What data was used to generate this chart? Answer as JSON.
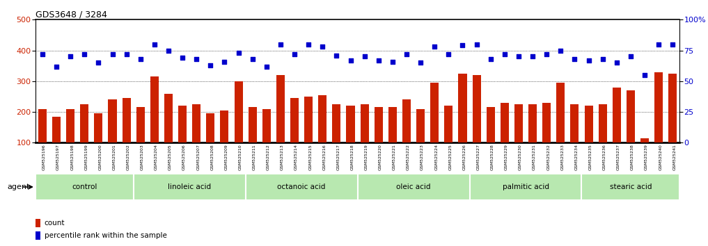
{
  "title": "GDS3648 / 3284",
  "samples": [
    "GSM525196",
    "GSM525197",
    "GSM525198",
    "GSM525199",
    "GSM525200",
    "GSM525201",
    "GSM525202",
    "GSM525203",
    "GSM525204",
    "GSM525205",
    "GSM525206",
    "GSM525207",
    "GSM525208",
    "GSM525209",
    "GSM525210",
    "GSM525211",
    "GSM525212",
    "GSM525213",
    "GSM525214",
    "GSM525215",
    "GSM525216",
    "GSM525217",
    "GSM525218",
    "GSM525219",
    "GSM525220",
    "GSM525221",
    "GSM525222",
    "GSM525223",
    "GSM525224",
    "GSM525225",
    "GSM525226",
    "GSM525227",
    "GSM525228",
    "GSM525229",
    "GSM525230",
    "GSM525231",
    "GSM525232",
    "GSM525233",
    "GSM525234",
    "GSM525235",
    "GSM525236",
    "GSM525237",
    "GSM525238",
    "GSM525239",
    "GSM525240",
    "GSM525241"
  ],
  "counts": [
    210,
    185,
    210,
    225,
    195,
    240,
    245,
    215,
    315,
    260,
    220,
    225,
    195,
    205,
    300,
    215,
    210,
    320,
    245,
    250,
    255,
    225,
    220,
    225,
    215,
    215,
    240,
    210,
    295,
    220,
    325,
    320,
    215,
    230,
    225,
    225,
    230,
    295,
    225,
    220,
    225,
    280,
    270,
    115,
    330,
    325
  ],
  "percentile_ranks": [
    72,
    62,
    70,
    72,
    65,
    72,
    72,
    68,
    80,
    75,
    69,
    68,
    63,
    66,
    73,
    68,
    62,
    80,
    72,
    80,
    78,
    71,
    67,
    70,
    67,
    66,
    72,
    65,
    78,
    72,
    79,
    80,
    68,
    72,
    70,
    70,
    72,
    75,
    68,
    67,
    68,
    65,
    70,
    55,
    80,
    80
  ],
  "groups": [
    {
      "label": "control",
      "start": 0,
      "end": 7
    },
    {
      "label": "linoleic acid",
      "start": 7,
      "end": 15
    },
    {
      "label": "octanoic acid",
      "start": 15,
      "end": 23
    },
    {
      "label": "oleic acid",
      "start": 23,
      "end": 31
    },
    {
      "label": "palmitic acid",
      "start": 31,
      "end": 39
    },
    {
      "label": "stearic acid",
      "start": 39,
      "end": 46
    }
  ],
  "bar_color": "#cc2200",
  "dot_color": "#0000cc",
  "group_color_light": "#b8e8b0",
  "group_color_dark": "#88cc88",
  "left_ylabel": "count",
  "right_ylabel": "percentile",
  "ylim_left": [
    100,
    500
  ],
  "ylim_right": [
    0,
    100
  ],
  "yticks_left": [
    100,
    200,
    300,
    400,
    500
  ],
  "yticks_right": [
    0,
    25,
    50,
    75,
    100
  ],
  "grid_values": [
    200,
    300,
    400
  ],
  "agent_label": "agent",
  "legend_count_label": "count",
  "legend_pct_label": "percentile rank within the sample",
  "background_color": "#f0f0f0"
}
